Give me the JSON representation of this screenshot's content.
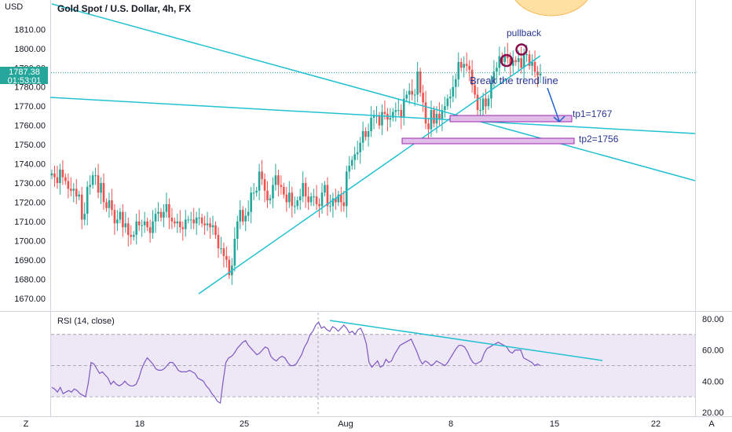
{
  "header": {
    "symbol_title": "Gold Spot / U.S. Dollar, 4h, FX",
    "currency": "USD"
  },
  "price_badge": {
    "price": "1787.38",
    "countdown": "01:53:01",
    "color": "#26a69a"
  },
  "rsi_panel": {
    "title": "RSI (14, close)",
    "levels": [
      70,
      50,
      30
    ]
  },
  "annotations": {
    "pullback": "pullback",
    "break_trend": "Break the trend line",
    "tp1": "tp1=1767",
    "tp2": "tp2=1756"
  },
  "bottom_bar": {
    "left_icon": "Z",
    "right_icon": "A"
  },
  "colors": {
    "up": "#26a69a",
    "down": "#ef5350",
    "trend": "#22c1d2",
    "zone_fill": "#e1bee7",
    "zone_stroke": "#9c27b0",
    "rsi_line": "#7e57c2",
    "rsi_fill": "#ede7f6",
    "annot_text": "#283593",
    "arrow": "#1e63d6",
    "circle": "#880e4f",
    "sun": "#ffe0a3"
  },
  "chart_data": {
    "type": "candlestick",
    "title": "Gold Spot / U.S. Dollar, 4h, FX",
    "ylabel": "USD",
    "ylim": [
      1665,
      1822
    ],
    "y_ticks": [
      1670,
      1680,
      1690,
      1700,
      1710,
      1720,
      1730,
      1740,
      1750,
      1760,
      1770,
      1780,
      1790,
      1800,
      1810
    ],
    "x_ticks": [
      "18",
      "25",
      "Aug",
      "8",
      "15",
      "22"
    ],
    "last_price": 1787.38,
    "candles_close": [
      1735,
      1733,
      1730,
      1737,
      1733,
      1731,
      1727,
      1726,
      1727,
      1723,
      1724,
      1711,
      1714,
      1728,
      1729,
      1734,
      1734,
      1725,
      1730,
      1720,
      1717,
      1721,
      1716,
      1709,
      1711,
      1715,
      1707,
      1709,
      1703,
      1702,
      1703,
      1710,
      1708,
      1708,
      1710,
      1707,
      1704,
      1710,
      1714,
      1715,
      1712,
      1715,
      1719,
      1712,
      1710,
      1709,
      1710,
      1707,
      1706,
      1711,
      1711,
      1711,
      1709,
      1712,
      1712,
      1709,
      1708,
      1709,
      1707,
      1708,
      1703,
      1696,
      1696,
      1692,
      1690,
      1682,
      1687,
      1701,
      1710,
      1716,
      1710,
      1713,
      1715,
      1725,
      1725,
      1726,
      1736,
      1732,
      1726,
      1721,
      1722,
      1729,
      1734,
      1729,
      1728,
      1724,
      1720,
      1725,
      1718,
      1718,
      1721,
      1723,
      1730,
      1723,
      1720,
      1723,
      1723,
      1719,
      1718,
      1725,
      1729,
      1718,
      1718,
      1722,
      1720,
      1724,
      1720,
      1718,
      1736,
      1739,
      1742,
      1745,
      1746,
      1751,
      1757,
      1754,
      1757,
      1764,
      1765,
      1765,
      1760,
      1767,
      1766,
      1763,
      1764,
      1767,
      1768,
      1768,
      1764,
      1774,
      1776,
      1778,
      1776,
      1776,
      1788,
      1777,
      1772,
      1761,
      1758,
      1768,
      1761,
      1766,
      1763,
      1768,
      1770,
      1774,
      1775,
      1780,
      1784,
      1793,
      1790,
      1792,
      1791,
      1789,
      1781,
      1776,
      1768,
      1768,
      1774,
      1770,
      1774,
      1782,
      1788,
      1790,
      1796,
      1793,
      1797,
      1795,
      1791,
      1794,
      1793,
      1795,
      1790,
      1797,
      1797,
      1791,
      1793,
      1788,
      1786,
      1787
    ],
    "rsi_ylim": [
      20,
      82
    ],
    "rsi_ticks": [
      20,
      40,
      60,
      80
    ],
    "rsi": [
      36,
      35,
      33,
      36,
      32,
      33,
      34,
      33,
      35,
      34,
      32,
      31,
      30,
      39,
      52,
      51,
      48,
      45,
      46,
      44,
      42,
      38,
      40,
      38,
      37,
      38,
      40,
      38,
      37,
      37,
      38,
      42,
      48,
      52,
      55,
      53,
      51,
      48,
      47,
      47,
      48,
      50,
      52,
      52,
      50,
      47,
      46,
      46,
      46,
      47,
      46,
      45,
      42,
      41,
      40,
      37,
      35,
      32,
      30,
      27,
      26,
      40,
      52,
      55,
      56,
      58,
      61,
      63,
      65,
      66,
      63,
      61,
      59,
      57,
      58,
      60,
      62,
      61,
      56,
      54,
      53,
      55,
      56,
      55,
      52,
      50,
      50,
      51,
      54,
      57,
      62,
      65,
      70,
      72,
      76,
      78,
      74,
      75,
      73,
      72,
      75,
      74,
      72,
      74,
      76,
      74,
      71,
      72,
      70,
      73,
      74,
      70,
      64,
      52,
      49,
      51,
      53,
      49,
      50,
      54,
      52,
      53,
      57,
      60,
      63,
      64,
      65,
      66,
      67,
      63,
      59,
      54,
      51,
      53,
      52,
      50,
      51,
      53,
      52,
      51,
      50,
      52,
      55,
      58,
      61,
      63,
      63,
      62,
      59,
      55,
      52,
      51,
      52,
      53,
      58,
      61,
      62,
      63,
      64,
      65,
      64,
      63,
      62,
      59,
      58,
      60,
      60,
      60,
      55,
      54,
      53,
      52,
      50,
      51,
      50
    ],
    "annotations": [
      "pullback",
      "Break the trend line",
      "tp1=1767",
      "tp2=1756"
    ]
  }
}
